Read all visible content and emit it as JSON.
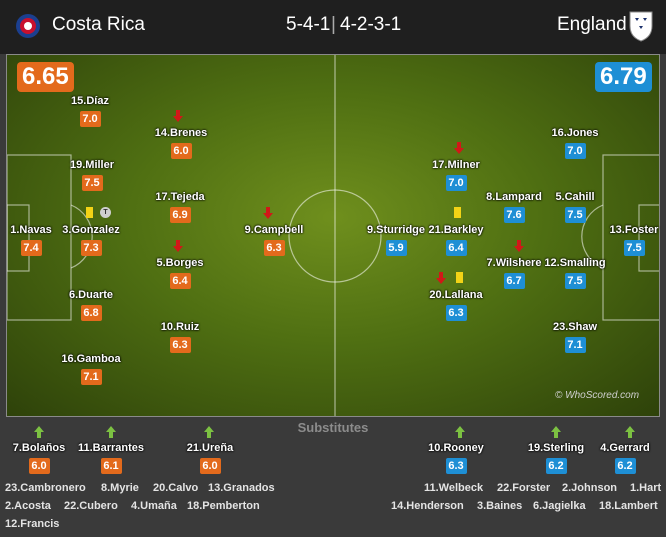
{
  "header": {
    "home_team": "Costa Rica",
    "home_formation": "5-4-1",
    "away_formation": "4-2-3-1",
    "away_team": "England",
    "separator": "|"
  },
  "home": {
    "team_rating": "6.65",
    "color": "#e36a1c",
    "players": [
      {
        "name": "15.Díaz",
        "rating": "7.0"
      },
      {
        "name": "14.Brenes",
        "rating": "6.0"
      },
      {
        "name": "19.Miller",
        "rating": "7.5"
      },
      {
        "name": "17.Tejeda",
        "rating": "6.9"
      },
      {
        "name": "1.Navas",
        "rating": "7.4"
      },
      {
        "name": "3.Gonzalez",
        "rating": "7.3"
      },
      {
        "name": "9.Campbell",
        "rating": "6.3"
      },
      {
        "name": "5.Borges",
        "rating": "6.4"
      },
      {
        "name": "6.Duarte",
        "rating": "6.8"
      },
      {
        "name": "10.Ruiz",
        "rating": "6.3"
      },
      {
        "name": "16.Gamboa",
        "rating": "7.1"
      }
    ],
    "subs_on": [
      {
        "name": "7.Bolaños",
        "rating": "6.0"
      },
      {
        "name": "11.Barrantes",
        "rating": "6.1"
      },
      {
        "name": "21.Ureña",
        "rating": "6.0"
      }
    ],
    "bench": [
      "23.Cambronero",
      "8.Myrie",
      "20.Calvo",
      "13.Granados",
      "2.Acosta",
      "22.Cubero",
      "4.Umaña",
      "18.Pemberton",
      "12.Francis"
    ]
  },
  "away": {
    "team_rating": "6.79",
    "color": "#1e8fd5",
    "players": [
      {
        "name": "16.Jones",
        "rating": "7.0"
      },
      {
        "name": "17.Milner",
        "rating": "7.0"
      },
      {
        "name": "8.Lampard",
        "rating": "7.6"
      },
      {
        "name": "5.Cahill",
        "rating": "7.5"
      },
      {
        "name": "9.Sturridge",
        "rating": "5.9"
      },
      {
        "name": "21.Barkley",
        "rating": "6.4"
      },
      {
        "name": "13.Foster",
        "rating": "7.5"
      },
      {
        "name": "7.Wilshere",
        "rating": "6.7"
      },
      {
        "name": "12.Smalling",
        "rating": "7.5"
      },
      {
        "name": "20.Lallana",
        "rating": "6.3"
      },
      {
        "name": "23.Shaw",
        "rating": "7.1"
      }
    ],
    "subs_on": [
      {
        "name": "10.Rooney",
        "rating": "6.3"
      },
      {
        "name": "19.Sterling",
        "rating": "6.2"
      },
      {
        "name": "4.Gerrard",
        "rating": "6.2"
      }
    ],
    "bench": [
      "11.Welbeck",
      "22.Forster",
      "2.Johnson",
      "1.Hart",
      "14.Henderson",
      "3.Baines",
      "6.Jagielka",
      "18.Lambert"
    ]
  },
  "icons": {
    "home_crest": "costa-rica-crest-icon",
    "away_crest": "england-crest-icon",
    "subbed_off": "red-arrow-down-icon",
    "subbed_on": "green-arrow-up-icon",
    "yellow_card": "yellow-card-icon",
    "event_badge": "T"
  },
  "substitutes_title": "Substitutes",
  "watermark": "© WhoScored.com"
}
